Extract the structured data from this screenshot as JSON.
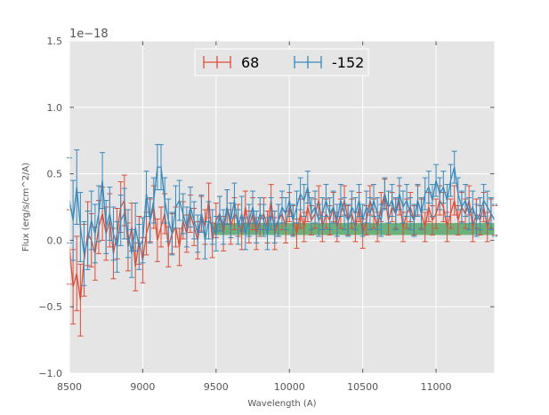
{
  "chart_data": {
    "type": "line",
    "title": "",
    "xlabel": "Wavelength (A)",
    "ylabel": "Flux (erg/s/cm^2/A)",
    "y_offset_label": "1e−18",
    "y_scale": 1e-18,
    "xlim": [
      8500,
      11400
    ],
    "ylim": [
      -1.0,
      1.5
    ],
    "x_ticks": [
      8500,
      9000,
      9500,
      10000,
      10500,
      11000
    ],
    "x_tick_labels": [
      "8500",
      "9000",
      "9500",
      "10000",
      "10500",
      "11000"
    ],
    "y_ticks": [
      -1.0,
      -0.5,
      0.0,
      0.5,
      1.0,
      1.5
    ],
    "y_tick_labels": [
      "−1.0",
      "−0.5",
      "0.0",
      "0.5",
      "1.0",
      "1.5"
    ],
    "grid": true,
    "legend_position": "top-center",
    "band": {
      "x_start": 9480,
      "x_end": 11400,
      "y_low": 0.04,
      "y_high": 0.13,
      "color": "#55a868",
      "opacity": 0.85
    },
    "series": [
      {
        "name": "68",
        "color": "#e24a33",
        "x": [
          8500,
          8525,
          8550,
          8575,
          8600,
          8625,
          8650,
          8675,
          8700,
          8725,
          8750,
          8775,
          8800,
          8825,
          8850,
          8875,
          8900,
          8925,
          8950,
          8975,
          9000,
          9025,
          9050,
          9075,
          9100,
          9125,
          9150,
          9175,
          9200,
          9225,
          9250,
          9275,
          9300,
          9325,
          9350,
          9375,
          9400,
          9425,
          9450,
          9475,
          9500,
          9525,
          9550,
          9575,
          9600,
          9625,
          9650,
          9675,
          9700,
          9725,
          9750,
          9775,
          9800,
          9825,
          9850,
          9875,
          9900,
          9925,
          9950,
          9975,
          10000,
          10025,
          10050,
          10075,
          10100,
          10125,
          10150,
          10175,
          10200,
          10225,
          10250,
          10275,
          10300,
          10325,
          10350,
          10375,
          10400,
          10425,
          10450,
          10475,
          10500,
          10525,
          10550,
          10575,
          10600,
          10625,
          10650,
          10675,
          10700,
          10725,
          10750,
          10775,
          10800,
          10825,
          10850,
          10875,
          10900,
          10925,
          10950,
          10975,
          11000,
          11025,
          11050,
          11075,
          11100,
          11125,
          11150,
          11175,
          11200,
          11225,
          11250,
          11275,
          11300,
          11325,
          11350,
          11375,
          11400
        ],
        "y": [
          -0.05,
          -0.35,
          -0.25,
          -0.45,
          -0.15,
          0.05,
          0.0,
          -0.1,
          0.1,
          0.2,
          0.05,
          0.15,
          -0.1,
          0.05,
          0.25,
          0.3,
          -0.05,
          0.1,
          -0.2,
          0.0,
          -0.15,
          0.05,
          0.15,
          0.25,
          0.0,
          0.1,
          0.2,
          -0.05,
          0.05,
          0.1,
          -0.05,
          0.15,
          0.05,
          0.2,
          0.1,
          0.0,
          0.2,
          0.1,
          0.3,
          0.0,
          0.15,
          0.2,
          0.05,
          0.25,
          0.1,
          0.2,
          0.15,
          0.05,
          0.25,
          0.1,
          0.2,
          0.05,
          0.15,
          0.2,
          0.1,
          0.3,
          0.05,
          0.15,
          0.2,
          0.1,
          0.25,
          0.15,
          0.05,
          0.2,
          0.1,
          0.25,
          0.15,
          0.2,
          0.3,
          0.1,
          0.2,
          0.15,
          0.25,
          0.1,
          0.2,
          0.3,
          0.15,
          0.2,
          0.1,
          0.25,
          0.05,
          0.15,
          0.3,
          0.2,
          0.1,
          0.25,
          0.35,
          0.15,
          0.25,
          0.2,
          0.3,
          0.1,
          0.2,
          0.25,
          0.15,
          0.3,
          0.2,
          0.1,
          0.25,
          0.15,
          0.2,
          0.3,
          0.25,
          0.1,
          0.2,
          0.3,
          0.15,
          0.25,
          0.2,
          0.3,
          0.1,
          0.2,
          0.15,
          0.25,
          0.1,
          0.2,
          0.15
        ],
        "err": [
          0.28,
          0.28,
          0.28,
          0.27,
          0.27,
          0.24,
          0.2,
          0.2,
          0.2,
          0.2,
          0.2,
          0.2,
          0.19,
          0.19,
          0.19,
          0.19,
          0.18,
          0.18,
          0.18,
          0.18,
          0.17,
          0.16,
          0.16,
          0.16,
          0.16,
          0.15,
          0.15,
          0.15,
          0.15,
          0.15,
          0.14,
          0.14,
          0.14,
          0.14,
          0.14,
          0.14,
          0.13,
          0.13,
          0.13,
          0.13,
          0.13,
          0.13,
          0.13,
          0.13,
          0.13,
          0.12,
          0.12,
          0.12,
          0.12,
          0.12,
          0.12,
          0.12,
          0.12,
          0.12,
          0.12,
          0.12,
          0.12,
          0.12,
          0.12,
          0.12,
          0.11,
          0.11,
          0.11,
          0.11,
          0.11,
          0.11,
          0.11,
          0.11,
          0.11,
          0.11,
          0.11,
          0.11,
          0.11,
          0.11,
          0.11,
          0.11,
          0.11,
          0.11,
          0.11,
          0.11,
          0.11,
          0.11,
          0.11,
          0.11,
          0.11,
          0.11,
          0.11,
          0.11,
          0.11,
          0.11,
          0.11,
          0.11,
          0.11,
          0.11,
          0.11,
          0.11,
          0.11,
          0.11,
          0.11,
          0.11,
          0.11,
          0.11,
          0.11,
          0.11,
          0.11,
          0.11,
          0.11,
          0.11,
          0.11,
          0.11,
          0.11,
          0.11,
          0.11,
          0.11,
          0.11,
          0.11,
          0.11
        ]
      },
      {
        "name": "-152",
        "color": "#348abd",
        "x": [
          8500,
          8525,
          8550,
          8575,
          8600,
          8625,
          8650,
          8675,
          8700,
          8725,
          8750,
          8775,
          8800,
          8825,
          8850,
          8875,
          8900,
          8925,
          8950,
          8975,
          9000,
          9025,
          9050,
          9075,
          9100,
          9125,
          9150,
          9175,
          9200,
          9225,
          9250,
          9275,
          9300,
          9325,
          9350,
          9375,
          9400,
          9425,
          9450,
          9475,
          9500,
          9525,
          9550,
          9575,
          9600,
          9625,
          9650,
          9675,
          9700,
          9725,
          9750,
          9775,
          9800,
          9825,
          9850,
          9875,
          9900,
          9925,
          9950,
          9975,
          10000,
          10025,
          10050,
          10075,
          10100,
          10125,
          10150,
          10175,
          10200,
          10225,
          10250,
          10275,
          10300,
          10325,
          10350,
          10375,
          10400,
          10425,
          10450,
          10475,
          10500,
          10525,
          10550,
          10575,
          10600,
          10625,
          10650,
          10675,
          10700,
          10725,
          10750,
          10775,
          10800,
          10825,
          10850,
          10875,
          10900,
          10925,
          10950,
          10975,
          11000,
          11025,
          11050,
          11075,
          11100,
          11125,
          11150,
          11175,
          11200,
          11225,
          11250,
          11275,
          11300,
          11325,
          11350,
          11375,
          11400
        ],
        "y": [
          0.3,
          0.15,
          0.4,
          0.1,
          -0.1,
          0.0,
          0.15,
          0.05,
          0.2,
          0.45,
          0.1,
          0.2,
          0.05,
          -0.05,
          0.15,
          0.2,
          0.05,
          -0.1,
          0.1,
          -0.05,
          0.0,
          0.35,
          0.15,
          0.3,
          0.55,
          0.55,
          0.3,
          0.15,
          0.05,
          0.25,
          0.3,
          0.2,
          0.1,
          0.25,
          0.15,
          0.05,
          0.2,
          0.0,
          0.15,
          0.1,
          0.05,
          0.2,
          0.1,
          0.25,
          0.15,
          0.3,
          0.1,
          0.2,
          0.05,
          0.15,
          0.25,
          0.1,
          0.2,
          0.15,
          0.05,
          0.2,
          0.1,
          0.15,
          0.25,
          0.2,
          0.3,
          0.15,
          0.25,
          0.35,
          0.3,
          0.4,
          0.2,
          0.25,
          0.15,
          0.2,
          0.3,
          0.2,
          0.25,
          0.15,
          0.3,
          0.2,
          0.15,
          0.25,
          0.2,
          0.3,
          0.15,
          0.25,
          0.2,
          0.3,
          0.2,
          0.15,
          0.35,
          0.25,
          0.3,
          0.2,
          0.35,
          0.25,
          0.3,
          0.2,
          0.15,
          0.3,
          0.2,
          0.35,
          0.4,
          0.3,
          0.45,
          0.35,
          0.4,
          0.3,
          0.45,
          0.55,
          0.35,
          0.25,
          0.3,
          0.2,
          0.25,
          0.15,
          0.2,
          0.3,
          0.25,
          0.2,
          0.15
        ],
        "err": [
          0.32,
          0.3,
          0.28,
          0.26,
          0.24,
          0.22,
          0.22,
          0.22,
          0.21,
          0.21,
          0.2,
          0.2,
          0.2,
          0.19,
          0.19,
          0.19,
          0.18,
          0.18,
          0.18,
          0.17,
          0.17,
          0.17,
          0.17,
          0.17,
          0.17,
          0.17,
          0.17,
          0.16,
          0.16,
          0.16,
          0.15,
          0.15,
          0.15,
          0.15,
          0.14,
          0.14,
          0.14,
          0.14,
          0.14,
          0.13,
          0.13,
          0.13,
          0.13,
          0.13,
          0.13,
          0.13,
          0.13,
          0.13,
          0.12,
          0.12,
          0.12,
          0.12,
          0.12,
          0.12,
          0.12,
          0.12,
          0.12,
          0.12,
          0.12,
          0.12,
          0.12,
          0.12,
          0.12,
          0.12,
          0.12,
          0.12,
          0.12,
          0.12,
          0.12,
          0.12,
          0.12,
          0.12,
          0.12,
          0.12,
          0.12,
          0.12,
          0.12,
          0.12,
          0.12,
          0.12,
          0.12,
          0.12,
          0.12,
          0.12,
          0.12,
          0.12,
          0.12,
          0.12,
          0.12,
          0.12,
          0.12,
          0.12,
          0.12,
          0.12,
          0.12,
          0.12,
          0.12,
          0.12,
          0.12,
          0.12,
          0.12,
          0.12,
          0.12,
          0.12,
          0.12,
          0.12,
          0.12,
          0.12,
          0.12,
          0.12,
          0.12,
          0.12,
          0.12,
          0.12,
          0.12,
          0.12,
          0.12
        ]
      }
    ]
  }
}
